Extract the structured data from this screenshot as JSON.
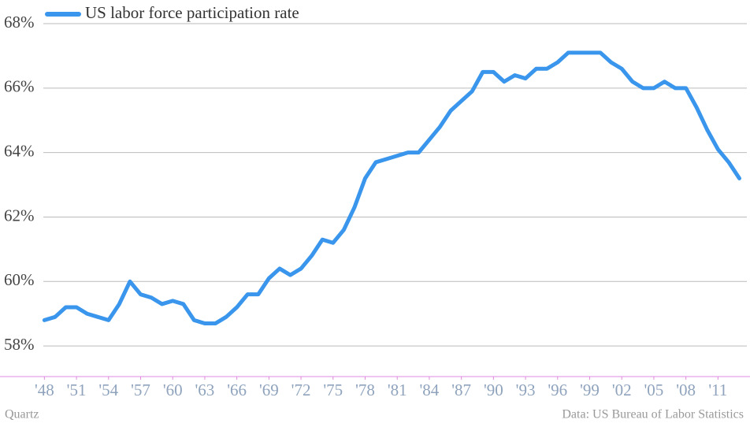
{
  "chart_data": {
    "type": "line",
    "x": [
      1948,
      1949,
      1950,
      1951,
      1952,
      1953,
      1954,
      1955,
      1956,
      1957,
      1958,
      1959,
      1960,
      1961,
      1962,
      1963,
      1964,
      1965,
      1966,
      1967,
      1968,
      1969,
      1970,
      1971,
      1972,
      1973,
      1974,
      1975,
      1976,
      1977,
      1978,
      1979,
      1980,
      1981,
      1982,
      1983,
      1984,
      1985,
      1986,
      1987,
      1988,
      1989,
      1990,
      1991,
      1992,
      1993,
      1994,
      1995,
      1996,
      1997,
      1998,
      1999,
      2000,
      2001,
      2002,
      2003,
      2004,
      2005,
      2006,
      2007,
      2008,
      2009,
      2010,
      2011,
      2012,
      2013
    ],
    "series": [
      {
        "name": "US labor force participation rate",
        "color": "#3a96ec",
        "values": [
          58.8,
          58.9,
          59.2,
          59.2,
          59.0,
          58.9,
          58.8,
          59.3,
          60.0,
          59.6,
          59.5,
          59.3,
          59.4,
          59.3,
          58.8,
          58.7,
          58.7,
          58.9,
          59.2,
          59.6,
          59.6,
          60.1,
          60.4,
          60.2,
          60.4,
          60.8,
          61.3,
          61.2,
          61.6,
          62.3,
          63.2,
          63.7,
          63.8,
          63.9,
          64.0,
          64.0,
          64.4,
          64.8,
          65.3,
          65.6,
          65.9,
          66.5,
          66.5,
          66.2,
          66.4,
          66.3,
          66.6,
          66.6,
          66.8,
          67.1,
          67.1,
          67.1,
          67.1,
          66.8,
          66.6,
          66.2,
          66.0,
          66.0,
          66.2,
          66.0,
          66.0,
          65.4,
          64.7,
          64.1,
          63.7,
          63.2
        ]
      }
    ],
    "xlim": [
      1947.9,
      2013.7
    ],
    "ylim": [
      57.05,
      68
    ],
    "xticks": [
      {
        "value": 1948,
        "label": "'48"
      },
      {
        "value": 1951,
        "label": "'51"
      },
      {
        "value": 1954,
        "label": "'54"
      },
      {
        "value": 1957,
        "label": "'57"
      },
      {
        "value": 1960,
        "label": "'60"
      },
      {
        "value": 1963,
        "label": "'63"
      },
      {
        "value": 1966,
        "label": "'66"
      },
      {
        "value": 1969,
        "label": "'69"
      },
      {
        "value": 1972,
        "label": "'72"
      },
      {
        "value": 1975,
        "label": "'75"
      },
      {
        "value": 1978,
        "label": "'78"
      },
      {
        "value": 1981,
        "label": "'81"
      },
      {
        "value": 1984,
        "label": "'84"
      },
      {
        "value": 1987,
        "label": "'87"
      },
      {
        "value": 1990,
        "label": "'90"
      },
      {
        "value": 1993,
        "label": "'93"
      },
      {
        "value": 1996,
        "label": "'96"
      },
      {
        "value": 1999,
        "label": "'99"
      },
      {
        "value": 2002,
        "label": "'02"
      },
      {
        "value": 2005,
        "label": "'05"
      },
      {
        "value": 2008,
        "label": "'08"
      },
      {
        "value": 2011,
        "label": "'11"
      }
    ],
    "yticks": [
      {
        "value": 58,
        "label": "58%"
      },
      {
        "value": 60,
        "label": "60%"
      },
      {
        "value": 62,
        "label": "62%"
      },
      {
        "value": 64,
        "label": "64%"
      },
      {
        "value": 66,
        "label": "66%"
      },
      {
        "value": 68,
        "label": "68%"
      }
    ],
    "grid": true,
    "credit": "Quartz",
    "source": "Data: US Bureau of Labor Statistics"
  }
}
